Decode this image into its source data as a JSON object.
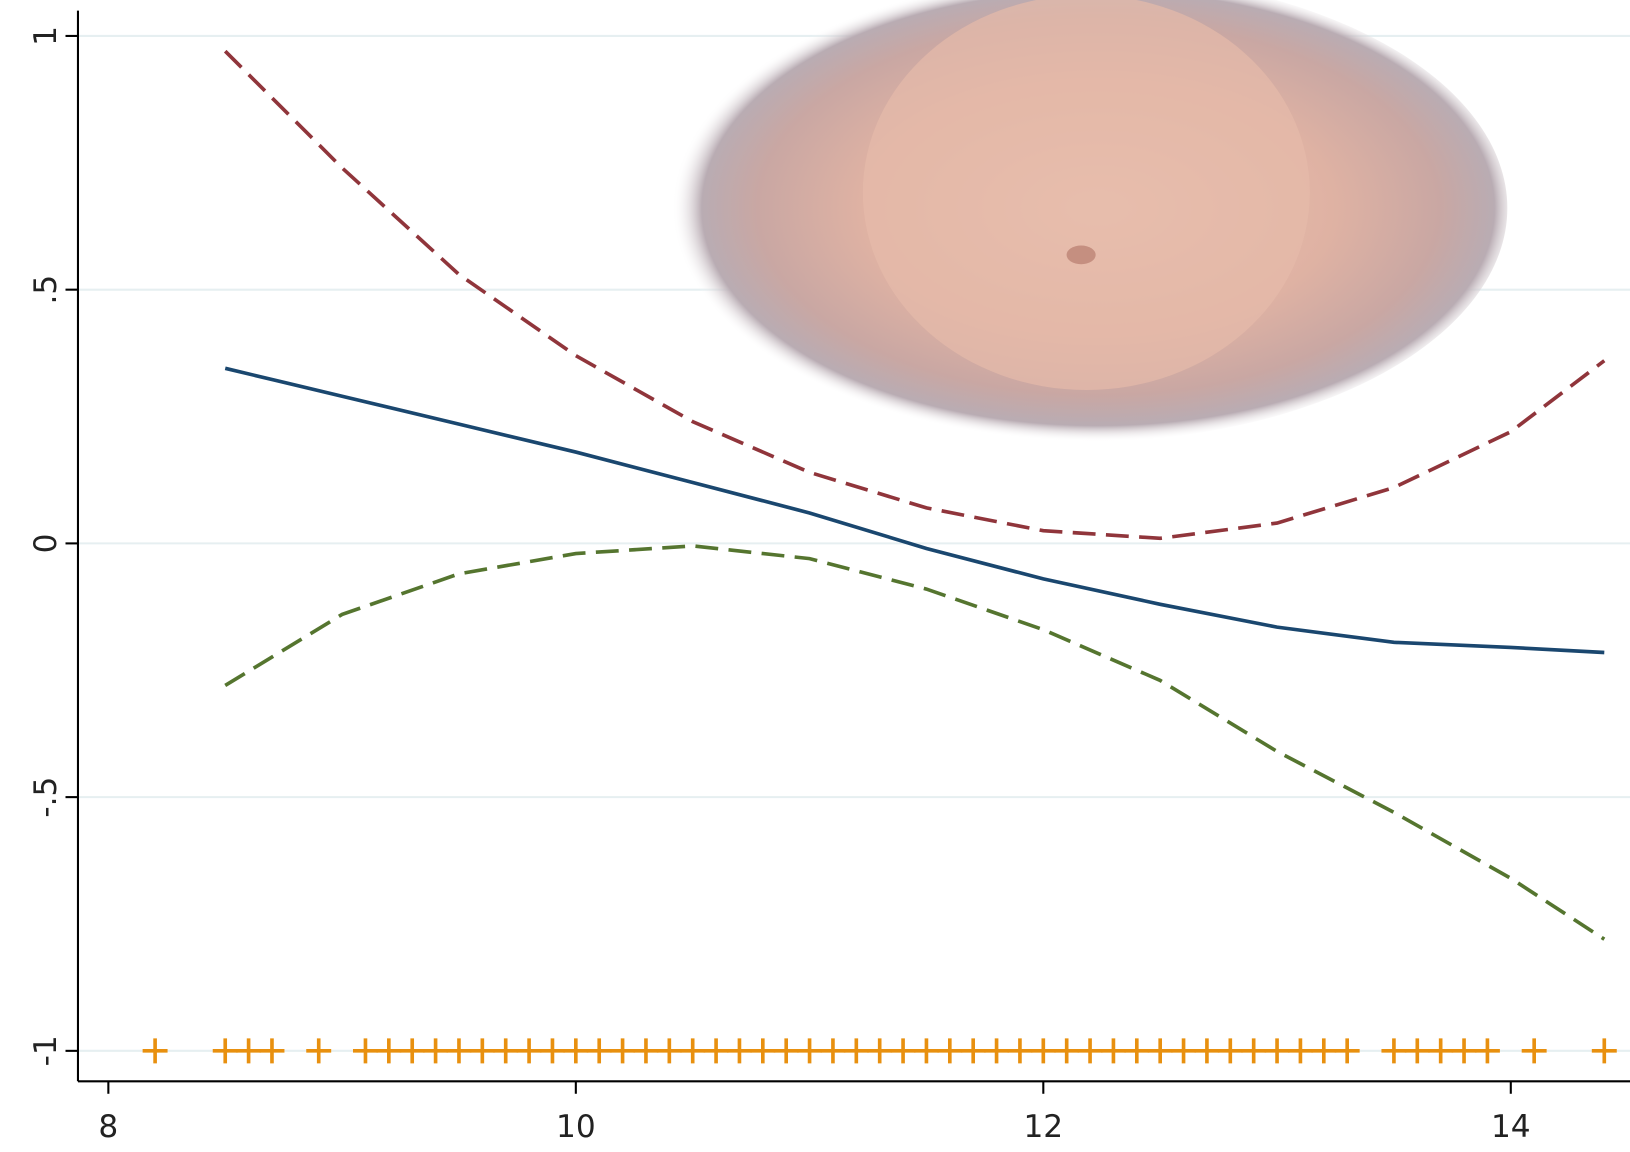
{
  "chart_data": {
    "type": "line",
    "xlim": [
      7.87,
      14.51
    ],
    "ylim": [
      -1.06,
      1.05
    ],
    "xticks": [
      8,
      10,
      12,
      14
    ],
    "yticks": [
      -1,
      {
        "value": -0.5,
        "label": "-.5"
      },
      0,
      {
        "value": 0.5,
        "label": ".5"
      },
      1
    ],
    "grid": true,
    "series": [
      {
        "color": "#1a476f",
        "dash": false,
        "x": [
          8.5,
          9,
          9.5,
          10,
          10.5,
          11,
          11.5,
          12,
          12.5,
          13,
          13.5,
          14,
          14.4
        ],
        "values": [
          0.345,
          0.29,
          0.235,
          0.18,
          0.12,
          0.06,
          -0.01,
          -0.07,
          -0.12,
          -0.165,
          -0.195,
          -0.205,
          -0.215
        ]
      },
      {
        "color": "#90353b",
        "dash": true,
        "x": [
          8.5,
          9,
          9.5,
          10,
          10.5,
          11,
          11.5,
          12,
          12.5,
          13,
          13.5,
          14,
          14.4
        ],
        "values": [
          0.97,
          0.74,
          0.53,
          0.37,
          0.24,
          0.14,
          0.07,
          0.025,
          0.01,
          0.04,
          0.11,
          0.22,
          0.36
        ]
      },
      {
        "color": "#55752f",
        "dash": true,
        "x": [
          8.5,
          9,
          9.5,
          10,
          10.5,
          11,
          11.5,
          12,
          12.5,
          13,
          13.5,
          14,
          14.4
        ],
        "values": [
          -0.28,
          -0.14,
          -0.06,
          -0.02,
          -0.005,
          -0.03,
          -0.09,
          -0.17,
          -0.27,
          -0.41,
          -0.53,
          -0.66,
          -0.78
        ]
      }
    ],
    "rug": {
      "color": "#e8900f",
      "x": [
        8.2,
        8.5,
        8.6,
        8.7,
        8.9,
        9.1,
        9.2,
        9.3,
        9.4,
        9.5,
        9.6,
        9.7,
        9.8,
        9.9,
        10.0,
        10.1,
        10.2,
        10.3,
        10.4,
        10.5,
        10.6,
        10.7,
        10.8,
        10.9,
        11.0,
        11.1,
        11.2,
        11.3,
        11.4,
        11.5,
        11.6,
        11.7,
        11.8,
        11.9,
        12.0,
        12.1,
        12.2,
        12.3,
        12.4,
        12.5,
        12.6,
        12.7,
        12.8,
        12.9,
        13.0,
        13.1,
        13.2,
        13.3,
        13.5,
        13.6,
        13.7,
        13.8,
        13.9,
        14.1,
        14.4
      ],
      "values": [
        -1,
        -1,
        -1,
        -1,
        -1,
        -1,
        -1,
        -1,
        -1,
        -1,
        -1,
        -1,
        -1,
        -1,
        -1,
        -1,
        -1,
        -1,
        -1,
        -1,
        -1,
        -1,
        -1,
        -1,
        -1,
        -1,
        -1,
        -1,
        -1,
        -1,
        -1,
        -1,
        -1,
        -1,
        -1,
        -1,
        -1,
        -1,
        -1,
        -1,
        -1,
        -1,
        -1,
        -1,
        -1,
        -1,
        -1,
        -1,
        -1,
        -1,
        -1,
        -1,
        -1,
        -1,
        -1
      ]
    }
  }
}
